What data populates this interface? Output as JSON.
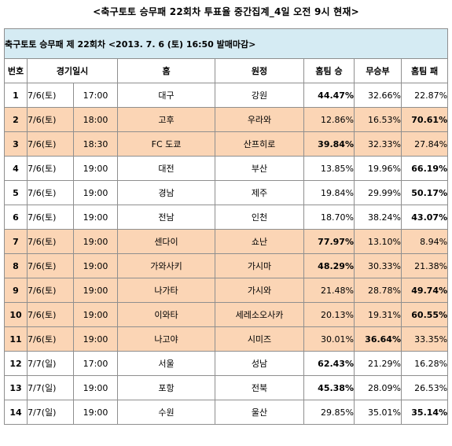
{
  "title": "<축구토토 승무패 22회차 투표율 중간집계_4일 오전 9시 현재>",
  "banner": "축구토토 승무패 제 22회차 <2013. 7. 6 (토) 16:50 발매마감>",
  "columns": [
    "번호",
    "경기일시",
    "홈",
    "원정",
    "홈팀 승",
    "무승부",
    "홈팀 패"
  ],
  "rows": [
    {
      "no": "1",
      "date": "7/6(토)",
      "time": "17:00",
      "home": "대구",
      "away": "강원",
      "win": "44.47%",
      "draw": "32.66%",
      "lose": "22.87%",
      "hl": false,
      "max": "win"
    },
    {
      "no": "2",
      "date": "7/6(토)",
      "time": "18:00",
      "home": "고후",
      "away": "우라와",
      "win": "12.86%",
      "draw": "16.53%",
      "lose": "70.61%",
      "hl": true,
      "max": "lose"
    },
    {
      "no": "3",
      "date": "7/6(토)",
      "time": "18:30",
      "home": "FC 도쿄",
      "away": "산프히로",
      "win": "39.84%",
      "draw": "32.33%",
      "lose": "27.84%",
      "hl": true,
      "max": "win"
    },
    {
      "no": "4",
      "date": "7/6(토)",
      "time": "19:00",
      "home": "대전",
      "away": "부산",
      "win": "13.85%",
      "draw": "19.96%",
      "lose": "66.19%",
      "hl": false,
      "max": "lose"
    },
    {
      "no": "5",
      "date": "7/6(토)",
      "time": "19:00",
      "home": "경남",
      "away": "제주",
      "win": "19.84%",
      "draw": "29.99%",
      "lose": "50.17%",
      "hl": false,
      "max": "lose"
    },
    {
      "no": "6",
      "date": "7/6(토)",
      "time": "19:00",
      "home": "전남",
      "away": "인천",
      "win": "18.70%",
      "draw": "38.24%",
      "lose": "43.07%",
      "hl": false,
      "max": "lose"
    },
    {
      "no": "7",
      "date": "7/6(토)",
      "time": "19:00",
      "home": "센다이",
      "away": "쇼난",
      "win": "77.97%",
      "draw": "13.10%",
      "lose": "8.94%",
      "hl": true,
      "max": "win"
    },
    {
      "no": "8",
      "date": "7/6(토)",
      "time": "19:00",
      "home": "가와사키",
      "away": "가시마",
      "win": "48.29%",
      "draw": "30.33%",
      "lose": "21.38%",
      "hl": true,
      "max": "win"
    },
    {
      "no": "9",
      "date": "7/6(토)",
      "time": "19:00",
      "home": "나가타",
      "away": "가시와",
      "win": "21.48%",
      "draw": "28.78%",
      "lose": "49.74%",
      "hl": true,
      "max": "lose"
    },
    {
      "no": "10",
      "date": "7/6(토)",
      "time": "19:00",
      "home": "이와타",
      "away": "세레소오사카",
      "win": "20.13%",
      "draw": "19.31%",
      "lose": "60.55%",
      "hl": true,
      "max": "lose"
    },
    {
      "no": "11",
      "date": "7/6(토)",
      "time": "19:00",
      "home": "나고야",
      "away": "시미즈",
      "win": "30.01%",
      "draw": "36.64%",
      "lose": "33.35%",
      "hl": true,
      "max": "draw"
    },
    {
      "no": "12",
      "date": "7/7(일)",
      "time": "17:00",
      "home": "서울",
      "away": "성남",
      "win": "62.43%",
      "draw": "21.29%",
      "lose": "16.28%",
      "hl": false,
      "max": "win"
    },
    {
      "no": "13",
      "date": "7/7(일)",
      "time": "19:00",
      "home": "포항",
      "away": "전북",
      "win": "45.38%",
      "draw": "28.09%",
      "lose": "26.53%",
      "hl": false,
      "max": "win"
    },
    {
      "no": "14",
      "date": "7/7(일)",
      "time": "19:00",
      "home": "수원",
      "away": "울산",
      "win": "29.85%",
      "draw": "35.01%",
      "lose": "35.14%",
      "hl": false,
      "max": "lose"
    }
  ]
}
